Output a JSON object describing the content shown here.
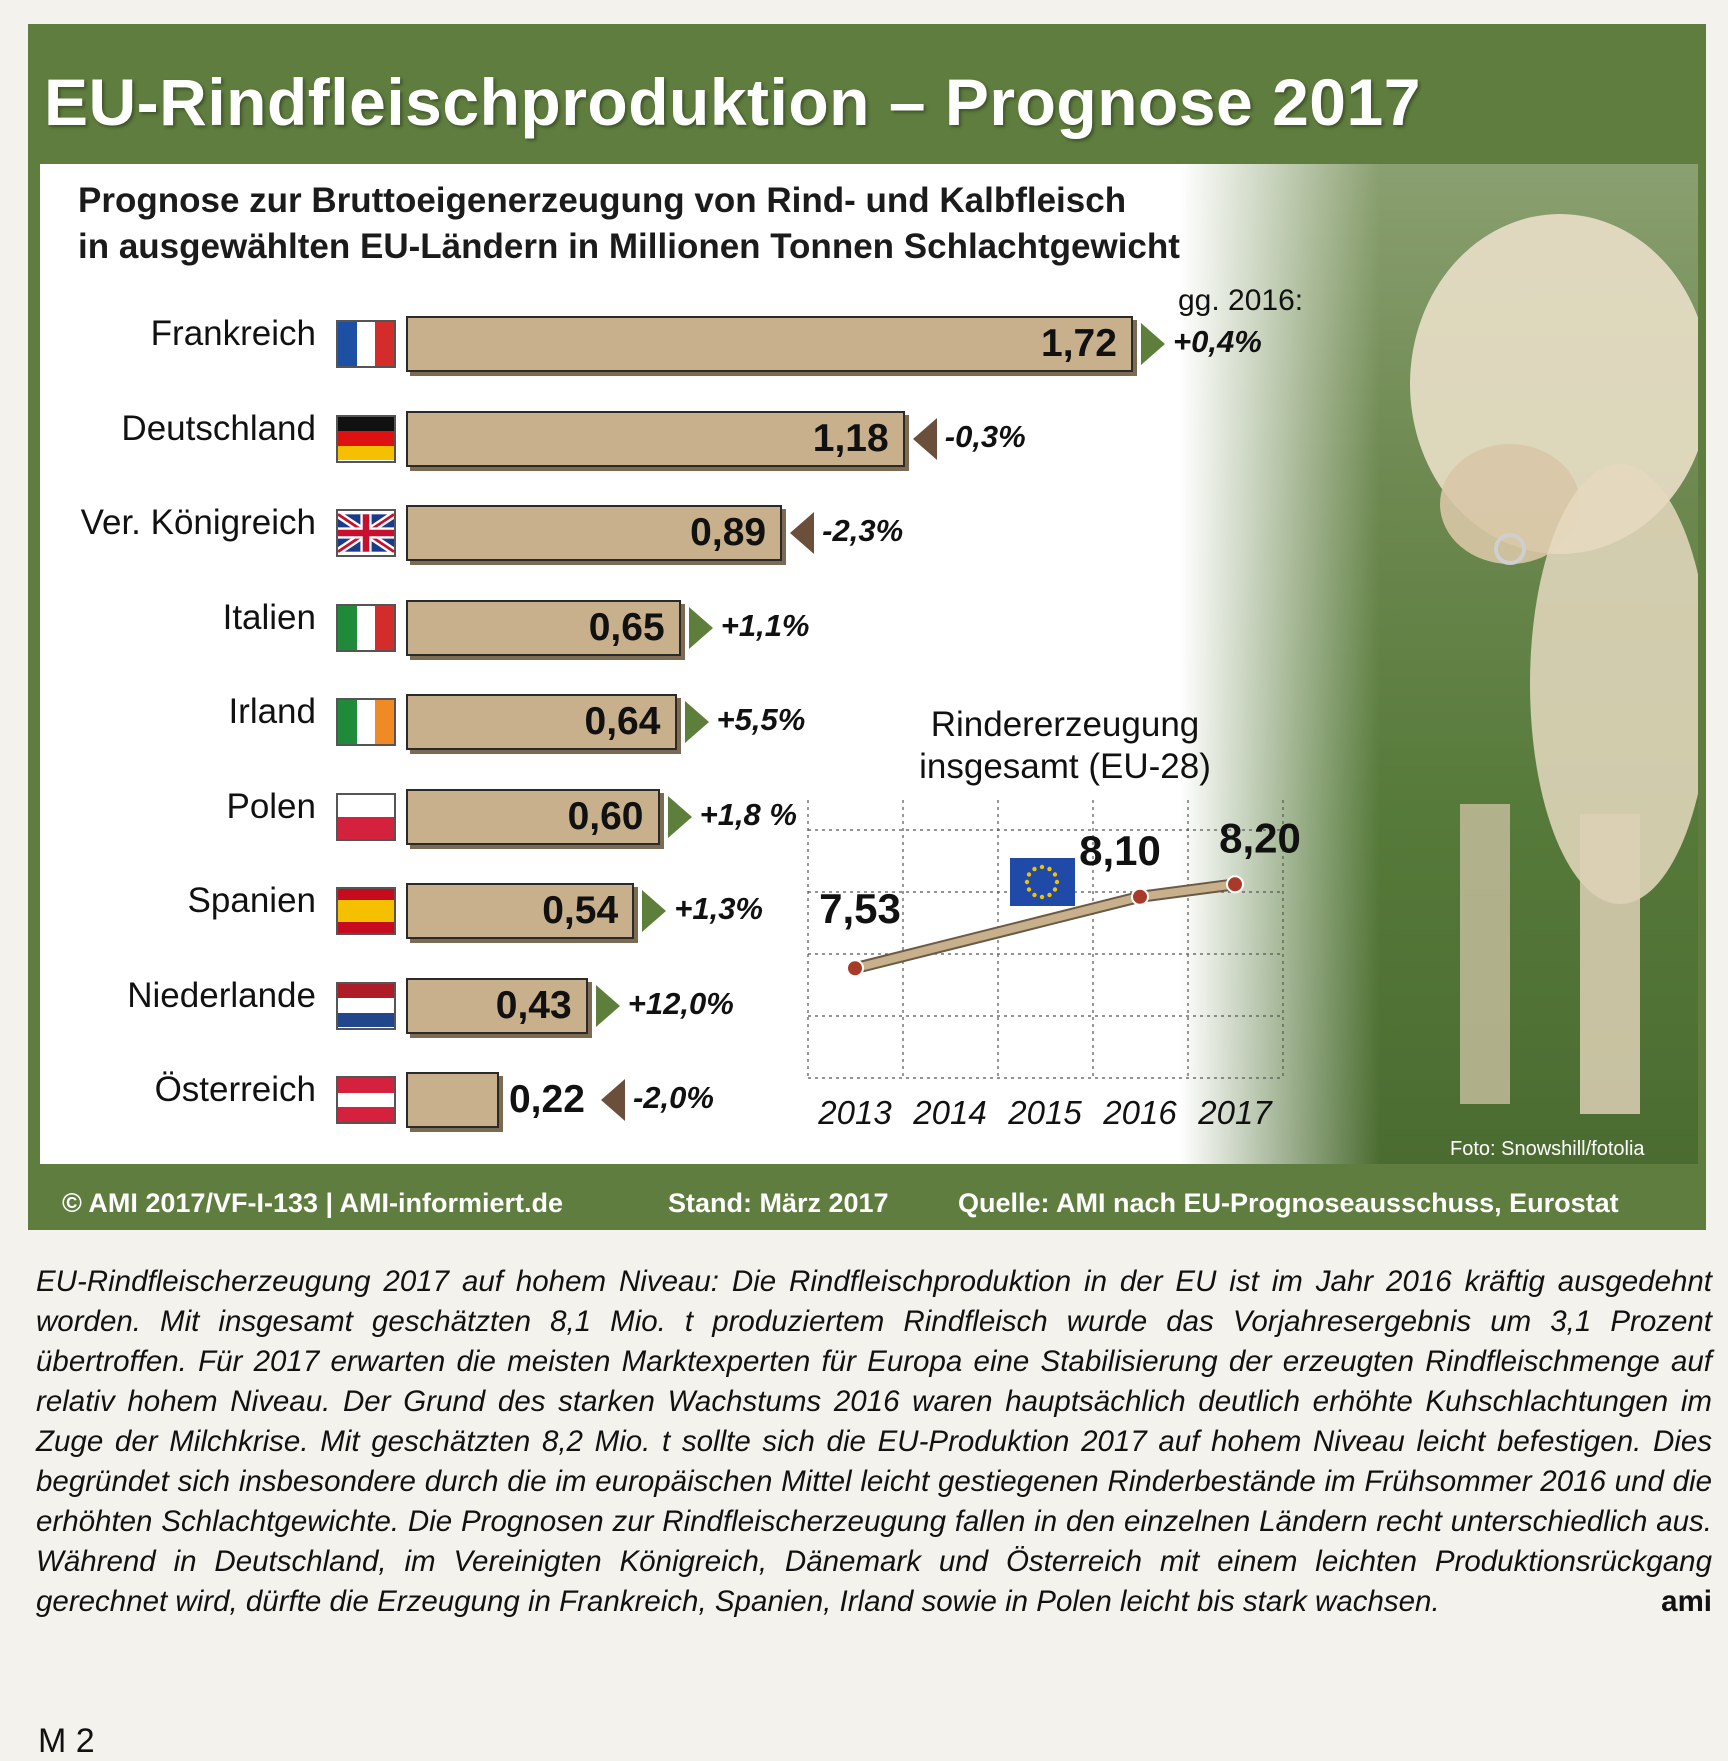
{
  "title": "EU-Rindfleischproduktion – Prognose 2017",
  "chart_title": "Prognose zur Bruttoeigenerzeugung von Rind- und Kalbfleisch\nin ausgewählten EU-Ländern in Millionen Tonnen Schlachtgewicht",
  "change_header": "gg. 2016:",
  "chart_data": [
    {
      "type": "bar",
      "orientation": "horizontal",
      "unit": "Mio. t",
      "categories": [
        "Frankreich",
        "Deutschland",
        "Ver. Königreich",
        "Italien",
        "Irland",
        "Polen",
        "Spanien",
        "Niederlande",
        "Österreich"
      ],
      "values": [
        1.72,
        1.18,
        0.89,
        0.65,
        0.64,
        0.6,
        0.54,
        0.43,
        0.22
      ],
      "value_labels": [
        "1,72",
        "1,18",
        "0,89",
        "0,65",
        "0,64",
        "0,60",
        "0,54",
        "0,43",
        "0,22"
      ],
      "changes": [
        "+0,4%",
        "-0,3%",
        "-2,3%",
        "+1,1%",
        "+5,5%",
        "+1,8 %",
        "+1,3%",
        "+12,0%",
        "-2,0%"
      ],
      "change_direction": [
        "up",
        "down",
        "down",
        "up",
        "up",
        "up",
        "up",
        "up",
        "down"
      ],
      "bar_color": "#c8b08c",
      "up_color": "#5e7f3c",
      "down_color": "#6b4f3a"
    },
    {
      "type": "line",
      "title": "Rindererzeugung\ninsgesamt (EU-28)",
      "x": [
        "2013",
        "2014",
        "2015",
        "2016",
        "2017"
      ],
      "y": [
        7.53,
        null,
        null,
        8.1,
        8.2
      ],
      "point_labels": {
        "2013": "7,53",
        "2016": "8,10",
        "2017": "8,20"
      },
      "line_color": "#c8b08c"
    }
  ],
  "footer": {
    "copyright": "© AMI 2017/VF-I-133 | AMI-informiert.de",
    "stand": "Stand: März 2017",
    "source": "Quelle: AMI nach EU-Prognoseausschuss, Eurostat"
  },
  "photo_credit": "Foto: Snowshill/fotolia",
  "caption": "EU-Rindfleischerzeugung 2017 auf hohem Niveau: Die Rindfleischproduktion in der EU ist im Jahr 2016 kräftig ausgedehnt worden. Mit insgesamt geschätzten 8,1 Mio. t produziertem Rindfleisch wurde das Vorjahresergebnis um 3,1 Prozent übertroffen. Für 2017 erwarten die meisten Marktexperten für Europa eine Stabilisierung der erzeugten Rindfleischmenge auf relativ hohem Niveau. Der Grund des starken Wachstums 2016 waren hauptsächlich deutlich erhöhte Kuhschlachtungen im Zuge der Milchkrise. Mit geschätzten 8,2 Mio. t sollte sich die EU-Produktion 2017 auf hohem Niveau leicht befestigen. Dies begründet sich insbesondere durch die im europäischen Mittel leicht gestiegenen Rinderbestände im Frühsommer 2016 und die erhöhten Schlachtgewichte. Die Prognosen zur Rindfleischerzeugung fallen in den einzelnen Ländern recht unterschiedlich aus. Während in Deutschland, im Vereinigten Königreich, Dänemark und Österreich mit einem leichten Produktionsrückgang gerechnet wird, dürfte die Erzeugung in Frankreich, Spanien, Irland sowie in Polen leicht bis stark wachsen.",
  "caption_sign": "ami",
  "page_number": "M 2"
}
